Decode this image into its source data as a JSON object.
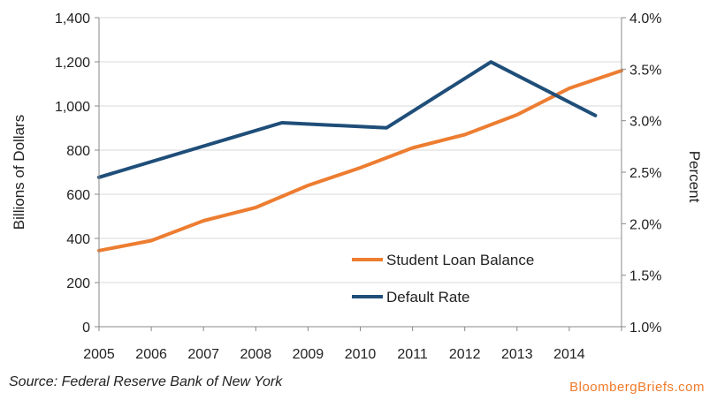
{
  "chart_data": {
    "type": "line",
    "title": "",
    "xlabel": "",
    "ylabel": "Billions of Dollars",
    "y2label": "Percent",
    "ylim": [
      0,
      1400
    ],
    "y2lim": [
      1.0,
      4.0
    ],
    "xlim": [
      2005,
      2015
    ],
    "x_ticks": [
      "2005",
      "2006",
      "2007",
      "2008",
      "2009",
      "2010",
      "2011",
      "2012",
      "2013",
      "2014"
    ],
    "y_ticks": [
      "0",
      "200",
      "400",
      "600",
      "800",
      "1,000",
      "1,200",
      "1,400"
    ],
    "y2_ticks": [
      "1.0%",
      "1.5%",
      "2.0%",
      "2.5%",
      "3.0%",
      "3.5%",
      "4.0%"
    ],
    "grid": "horizontal",
    "legend_position": "bottom-right",
    "series": [
      {
        "name": "Student Loan Balance",
        "axis": "left",
        "color": "#ed7d31",
        "points": [
          [
            2005,
            345
          ],
          [
            2006,
            390
          ],
          [
            2007,
            480
          ],
          [
            2008,
            540
          ],
          [
            2009,
            640
          ],
          [
            2010,
            720
          ],
          [
            2011,
            810
          ],
          [
            2012,
            870
          ],
          [
            2013,
            960
          ],
          [
            2014,
            1080
          ],
          [
            2015,
            1160
          ]
        ]
      },
      {
        "name": "Default Rate",
        "axis": "right",
        "color": "#1f4e79",
        "points": [
          [
            2005,
            2.45
          ],
          [
            2008.5,
            2.98
          ],
          [
            2010.5,
            2.93
          ],
          [
            2012.5,
            3.57
          ],
          [
            2014.5,
            3.05
          ]
        ]
      }
    ]
  },
  "footer": {
    "source": "Source: Federal Reserve Bank of New York",
    "brand": "BloombergBriefs.com"
  }
}
